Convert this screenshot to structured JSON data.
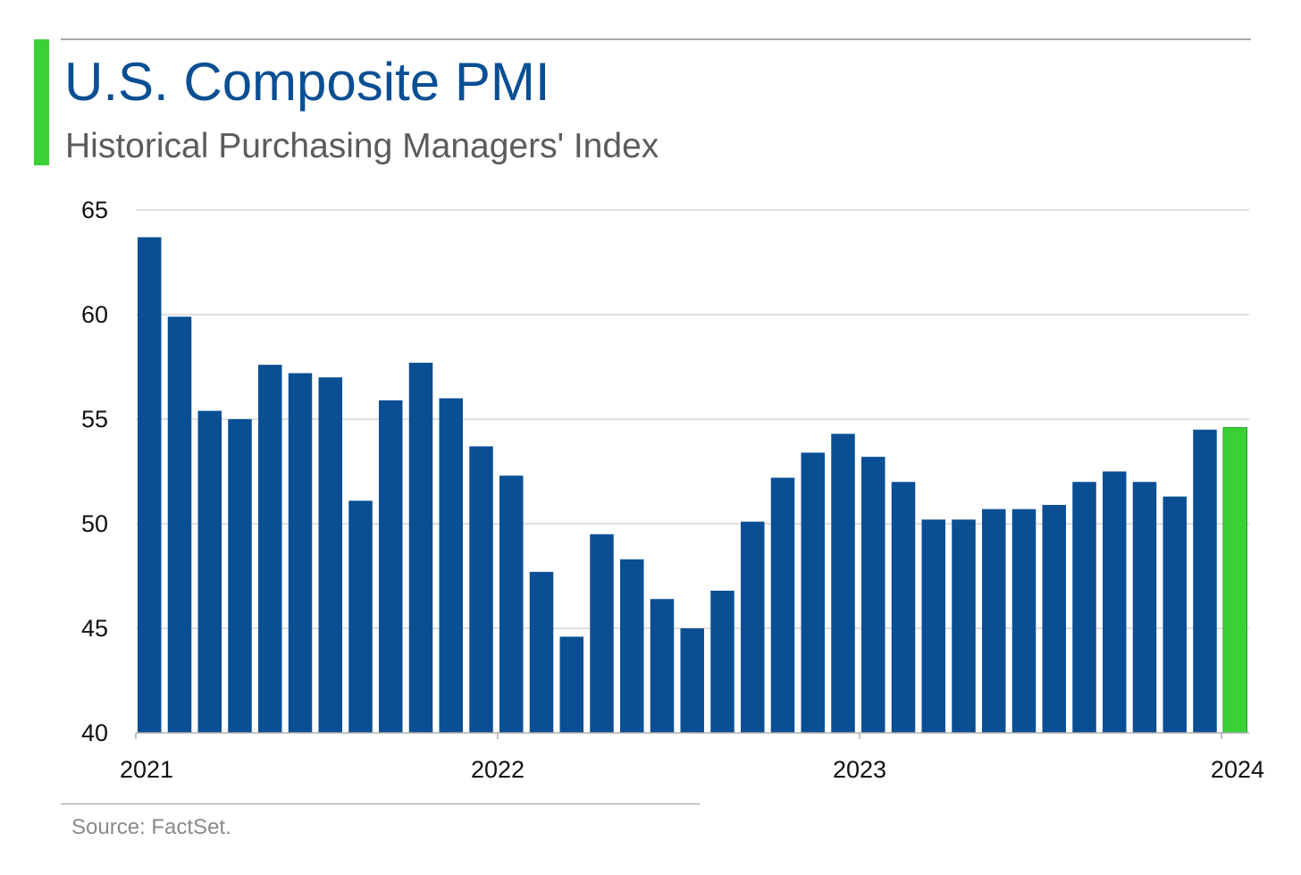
{
  "header": {
    "title": "U.S. Composite PMI",
    "subtitle": "Historical Purchasing Managers' Index"
  },
  "footer": {
    "source": "Source: FactSet."
  },
  "colors": {
    "accent": "#3ad135",
    "bar": "#0a4f93",
    "highlight_bar": "#3ad135",
    "gridline": "#bfbfbf"
  },
  "chart_data": {
    "type": "bar",
    "title": "U.S. Composite PMI",
    "subtitle": "Historical Purchasing Managers' Index",
    "xlabel": "",
    "ylabel": "",
    "ylim": [
      40,
      65
    ],
    "yticks": [
      40,
      45,
      50,
      55,
      60,
      65
    ],
    "xtick_labels": [
      "2021",
      "2022",
      "2023",
      "2024"
    ],
    "grid": true,
    "legend": "none",
    "categories": [
      "2021-01",
      "2021-02",
      "2021-03",
      "2021-04",
      "2021-05",
      "2021-06",
      "2021-07",
      "2021-08",
      "2021-09",
      "2021-10",
      "2021-11",
      "2021-12",
      "2022-01",
      "2022-02",
      "2022-03",
      "2022-04",
      "2022-05",
      "2022-06",
      "2022-07",
      "2022-08",
      "2022-09",
      "2022-10",
      "2022-11",
      "2022-12",
      "2023-01",
      "2023-02",
      "2023-03",
      "2023-04",
      "2023-05",
      "2023-06",
      "2023-07",
      "2023-08",
      "2023-09",
      "2023-10",
      "2023-11",
      "2023-12",
      "2024-01"
    ],
    "values": [
      63.7,
      59.9,
      55.4,
      55.0,
      57.6,
      57.2,
      57.0,
      51.1,
      55.9,
      57.7,
      56.0,
      53.7,
      52.3,
      47.7,
      44.6,
      49.5,
      48.3,
      46.4,
      45.0,
      46.8,
      50.1,
      52.2,
      53.4,
      54.3,
      53.2,
      52.0,
      50.2,
      50.2,
      50.7,
      50.7,
      50.9,
      52.0,
      52.5,
      52.0,
      51.3,
      54.5,
      54.6
    ],
    "highlight_index": 36
  }
}
